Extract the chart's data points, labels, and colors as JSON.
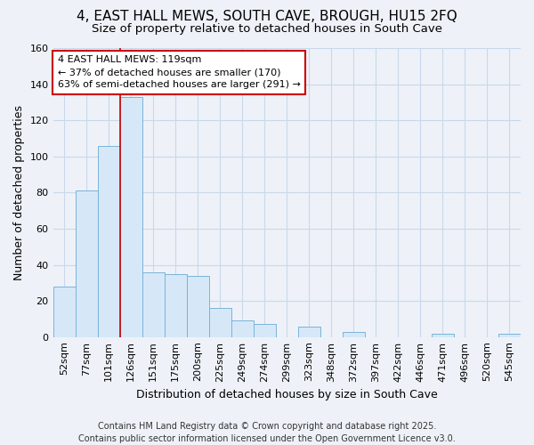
{
  "title": "4, EAST HALL MEWS, SOUTH CAVE, BROUGH, HU15 2FQ",
  "subtitle": "Size of property relative to detached houses in South Cave",
  "xlabel": "Distribution of detached houses by size in South Cave",
  "ylabel": "Number of detached properties",
  "categories": [
    "52sqm",
    "77sqm",
    "101sqm",
    "126sqm",
    "151sqm",
    "175sqm",
    "200sqm",
    "225sqm",
    "249sqm",
    "274sqm",
    "299sqm",
    "323sqm",
    "348sqm",
    "372sqm",
    "397sqm",
    "422sqm",
    "446sqm",
    "471sqm",
    "496sqm",
    "520sqm",
    "545sqm"
  ],
  "values": [
    28,
    81,
    106,
    133,
    36,
    35,
    34,
    16,
    9,
    7,
    0,
    6,
    0,
    3,
    0,
    0,
    0,
    2,
    0,
    0,
    2
  ],
  "bar_color": "#d6e8f7",
  "bar_edge_color": "#7ab3d9",
  "grid_color": "#c8d8ea",
  "background_color": "#eef2f8",
  "plot_bg_color": "#eef2f8",
  "vline_x_idx": 3,
  "vline_color": "#cc0000",
  "annotation_text": "4 EAST HALL MEWS: 119sqm\n← 37% of detached houses are smaller (170)\n63% of semi-detached houses are larger (291) →",
  "annotation_box_facecolor": "#ffffff",
  "annotation_box_edgecolor": "#cc0000",
  "ylim": [
    0,
    160
  ],
  "yticks": [
    0,
    20,
    40,
    60,
    80,
    100,
    120,
    140,
    160
  ],
  "footer": "Contains HM Land Registry data © Crown copyright and database right 2025.\nContains public sector information licensed under the Open Government Licence v3.0.",
  "title_fontsize": 11,
  "subtitle_fontsize": 9.5,
  "ylabel_fontsize": 9,
  "xlabel_fontsize": 9,
  "tick_fontsize": 8,
  "annot_fontsize": 8,
  "footer_fontsize": 7
}
